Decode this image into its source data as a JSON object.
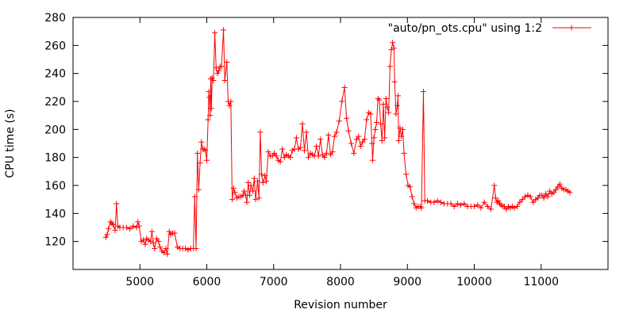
{
  "chart_data": {
    "type": "line",
    "title": "",
    "xlabel": "Revision number",
    "ylabel": "CPU time (s)",
    "xlim": [
      4000,
      12000
    ],
    "ylim": [
      100,
      280
    ],
    "x_ticks": [
      5000,
      6000,
      7000,
      8000,
      9000,
      10000,
      11000
    ],
    "y_ticks": [
      120,
      140,
      160,
      180,
      200,
      220,
      240,
      260,
      280
    ],
    "grid": false,
    "legend": {
      "position": "top-right",
      "entries": [
        "\"auto/pn_ots.cpu\" using 1:2"
      ]
    },
    "colors": {
      "series": "#ff0000",
      "axes": "#000000",
      "background": "#ffffff"
    },
    "marker": "plus",
    "series": [
      {
        "name": "\"auto/pn_ots.cpu\" using 1:2",
        "points": [
          [
            4490,
            123
          ],
          [
            4510,
            125
          ],
          [
            4530,
            129
          ],
          [
            4560,
            134
          ],
          [
            4580,
            133
          ],
          [
            4600,
            132
          ],
          [
            4630,
            128
          ],
          [
            4650,
            147
          ],
          [
            4670,
            131
          ],
          [
            4700,
            130
          ],
          [
            4750,
            130
          ],
          [
            4800,
            130
          ],
          [
            4850,
            129
          ],
          [
            4900,
            131
          ],
          [
            4950,
            130
          ],
          [
            4970,
            134
          ],
          [
            4990,
            131
          ],
          [
            5020,
            120
          ],
          [
            5050,
            121
          ],
          [
            5080,
            118
          ],
          [
            5100,
            122
          ],
          [
            5130,
            121
          ],
          [
            5160,
            120
          ],
          [
            5180,
            127
          ],
          [
            5200,
            119
          ],
          [
            5220,
            115
          ],
          [
            5250,
            122
          ],
          [
            5280,
            120
          ],
          [
            5300,
            116
          ],
          [
            5330,
            113
          ],
          [
            5360,
            112
          ],
          [
            5390,
            115
          ],
          [
            5410,
            111
          ],
          [
            5440,
            127
          ],
          [
            5460,
            125
          ],
          [
            5490,
            126
          ],
          [
            5520,
            126
          ],
          [
            5560,
            116
          ],
          [
            5600,
            115
          ],
          [
            5640,
            115
          ],
          [
            5680,
            115
          ],
          [
            5720,
            114
          ],
          [
            5760,
            115
          ],
          [
            5800,
            115
          ],
          [
            5820,
            152
          ],
          [
            5840,
            115
          ],
          [
            5860,
            183
          ],
          [
            5880,
            157
          ],
          [
            5900,
            176
          ],
          [
            5920,
            191
          ],
          [
            5940,
            186
          ],
          [
            5960,
            186
          ],
          [
            5980,
            185
          ],
          [
            6000,
            178
          ],
          [
            6020,
            207
          ],
          [
            6030,
            227
          ],
          [
            6040,
            223
          ],
          [
            6050,
            210
          ],
          [
            6060,
            236
          ],
          [
            6070,
            215
          ],
          [
            6080,
            237
          ],
          [
            6100,
            235
          ],
          [
            6120,
            269
          ],
          [
            6140,
            244
          ],
          [
            6160,
            240
          ],
          [
            6180,
            242
          ],
          [
            6200,
            245
          ],
          [
            6220,
            245
          ],
          [
            6250,
            271
          ],
          [
            6270,
            235
          ],
          [
            6300,
            248
          ],
          [
            6320,
            220
          ],
          [
            6340,
            217
          ],
          [
            6360,
            220
          ],
          [
            6380,
            150
          ],
          [
            6400,
            158
          ],
          [
            6420,
            155
          ],
          [
            6450,
            151
          ],
          [
            6480,
            152
          ],
          [
            6510,
            152
          ],
          [
            6540,
            153
          ],
          [
            6560,
            156
          ],
          [
            6580,
            153
          ],
          [
            6600,
            148
          ],
          [
            6620,
            162
          ],
          [
            6640,
            153
          ],
          [
            6660,
            160
          ],
          [
            6690,
            156
          ],
          [
            6710,
            165
          ],
          [
            6730,
            150
          ],
          [
            6760,
            163
          ],
          [
            6780,
            151
          ],
          [
            6800,
            198
          ],
          [
            6820,
            168
          ],
          [
            6840,
            162
          ],
          [
            6870,
            167
          ],
          [
            6890,
            163
          ],
          [
            6920,
            184
          ],
          [
            6950,
            181
          ],
          [
            6980,
            181
          ],
          [
            7010,
            183
          ],
          [
            7040,
            181
          ],
          [
            7070,
            178
          ],
          [
            7100,
            177
          ],
          [
            7130,
            186
          ],
          [
            7160,
            180
          ],
          [
            7190,
            182
          ],
          [
            7220,
            181
          ],
          [
            7250,
            180
          ],
          [
            7280,
            185
          ],
          [
            7310,
            186
          ],
          [
            7340,
            194
          ],
          [
            7370,
            186
          ],
          [
            7400,
            187
          ],
          [
            7430,
            204
          ],
          [
            7460,
            185
          ],
          [
            7490,
            198
          ],
          [
            7520,
            180
          ],
          [
            7550,
            183
          ],
          [
            7580,
            182
          ],
          [
            7610,
            181
          ],
          [
            7640,
            188
          ],
          [
            7670,
            181
          ],
          [
            7700,
            193
          ],
          [
            7730,
            182
          ],
          [
            7760,
            180
          ],
          [
            7790,
            183
          ],
          [
            7820,
            196
          ],
          [
            7850,
            182
          ],
          [
            7880,
            184
          ],
          [
            7910,
            195
          ],
          [
            7940,
            198
          ],
          [
            7980,
            206
          ],
          [
            8020,
            220
          ],
          [
            8060,
            230
          ],
          [
            8090,
            208
          ],
          [
            8120,
            199
          ],
          [
            8160,
            190
          ],
          [
            8200,
            183
          ],
          [
            8240,
            193
          ],
          [
            8270,
            195
          ],
          [
            8300,
            188
          ],
          [
            8330,
            191
          ],
          [
            8360,
            193
          ],
          [
            8390,
            207
          ],
          [
            8420,
            212
          ],
          [
            8450,
            211
          ],
          [
            8470,
            190
          ],
          [
            8480,
            178
          ],
          [
            8500,
            194
          ],
          [
            8520,
            200
          ],
          [
            8540,
            205
          ],
          [
            8560,
            222
          ],
          [
            8580,
            221
          ],
          [
            8600,
            204
          ],
          [
            8620,
            192
          ],
          [
            8640,
            218
          ],
          [
            8660,
            194
          ],
          [
            8680,
            222
          ],
          [
            8700,
            216
          ],
          [
            8720,
            212
          ],
          [
            8740,
            245
          ],
          [
            8760,
            257
          ],
          [
            8780,
            262
          ],
          [
            8800,
            258
          ],
          [
            8810,
            234
          ],
          [
            8830,
            211
          ],
          [
            8850,
            217
          ],
          [
            8860,
            224
          ],
          [
            8870,
            192
          ],
          [
            8890,
            201
          ],
          [
            8910,
            195
          ],
          [
            8930,
            200
          ],
          [
            8950,
            183
          ],
          [
            8980,
            168
          ],
          [
            9010,
            160
          ],
          [
            9040,
            159
          ],
          [
            9070,
            152
          ],
          [
            9100,
            147
          ],
          [
            9130,
            144
          ],
          [
            9160,
            145
          ],
          [
            9190,
            145
          ],
          [
            9210,
            144
          ],
          [
            9240,
            227
          ],
          [
            9260,
            149
          ],
          [
            9300,
            149
          ],
          [
            9350,
            148
          ],
          [
            9400,
            148
          ],
          [
            9450,
            149
          ],
          [
            9500,
            148
          ],
          [
            9550,
            147
          ],
          [
            9600,
            147
          ],
          [
            9650,
            147
          ],
          [
            9700,
            145
          ],
          [
            9750,
            147
          ],
          [
            9800,
            146
          ],
          [
            9850,
            147
          ],
          [
            9900,
            145
          ],
          [
            9950,
            145
          ],
          [
            10000,
            145
          ],
          [
            10050,
            146
          ],
          [
            10100,
            144
          ],
          [
            10150,
            148
          ],
          [
            10200,
            145
          ],
          [
            10250,
            143
          ],
          [
            10300,
            160
          ],
          [
            10320,
            151
          ],
          [
            10340,
            148
          ],
          [
            10360,
            149
          ],
          [
            10380,
            147
          ],
          [
            10400,
            146
          ],
          [
            10430,
            145
          ],
          [
            10450,
            145
          ],
          [
            10480,
            143
          ],
          [
            10510,
            145
          ],
          [
            10540,
            144
          ],
          [
            10570,
            145
          ],
          [
            10600,
            144
          ],
          [
            10640,
            145
          ],
          [
            10680,
            148
          ],
          [
            10720,
            150
          ],
          [
            10760,
            152
          ],
          [
            10800,
            153
          ],
          [
            10840,
            152
          ],
          [
            10880,
            148
          ],
          [
            10920,
            150
          ],
          [
            10950,
            151
          ],
          [
            10980,
            153
          ],
          [
            11010,
            153
          ],
          [
            11040,
            151
          ],
          [
            11070,
            154
          ],
          [
            11100,
            152
          ],
          [
            11130,
            156
          ],
          [
            11160,
            154
          ],
          [
            11190,
            155
          ],
          [
            11220,
            157
          ],
          [
            11250,
            159
          ],
          [
            11280,
            161
          ],
          [
            11310,
            158
          ],
          [
            11340,
            157
          ],
          [
            11370,
            157
          ],
          [
            11400,
            156
          ],
          [
            11430,
            155
          ]
        ]
      }
    ]
  }
}
